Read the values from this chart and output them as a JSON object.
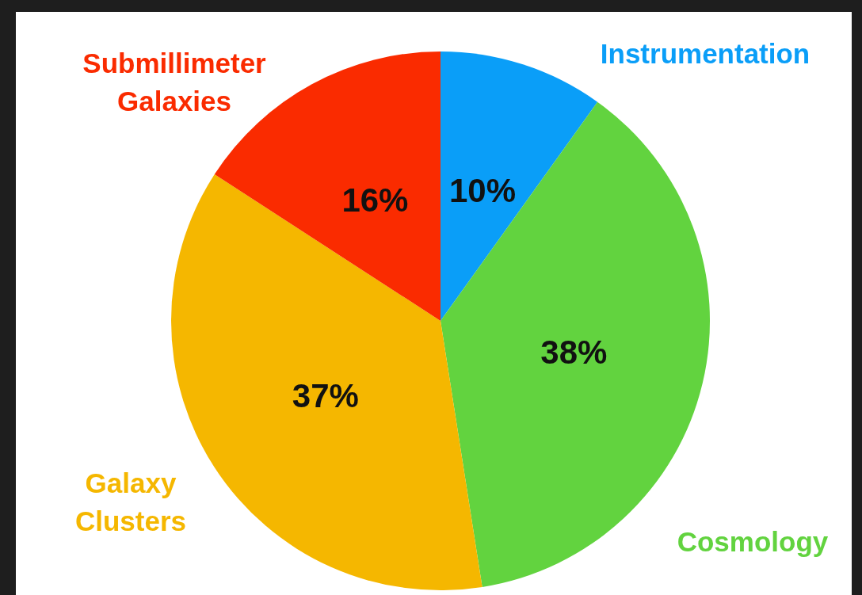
{
  "chart_data": {
    "type": "pie",
    "categories": [
      "Instrumentation",
      "Cosmology",
      "Galaxy Clusters",
      "Submillimeter Galaxies"
    ],
    "values": [
      10,
      38,
      37,
      16
    ],
    "colors": [
      "#0a9ef8",
      "#62d33f",
      "#f5b700",
      "#fa2b00"
    ],
    "value_labels": [
      "10%",
      "38%",
      "37%",
      "16%"
    ],
    "legend": false
  }
}
